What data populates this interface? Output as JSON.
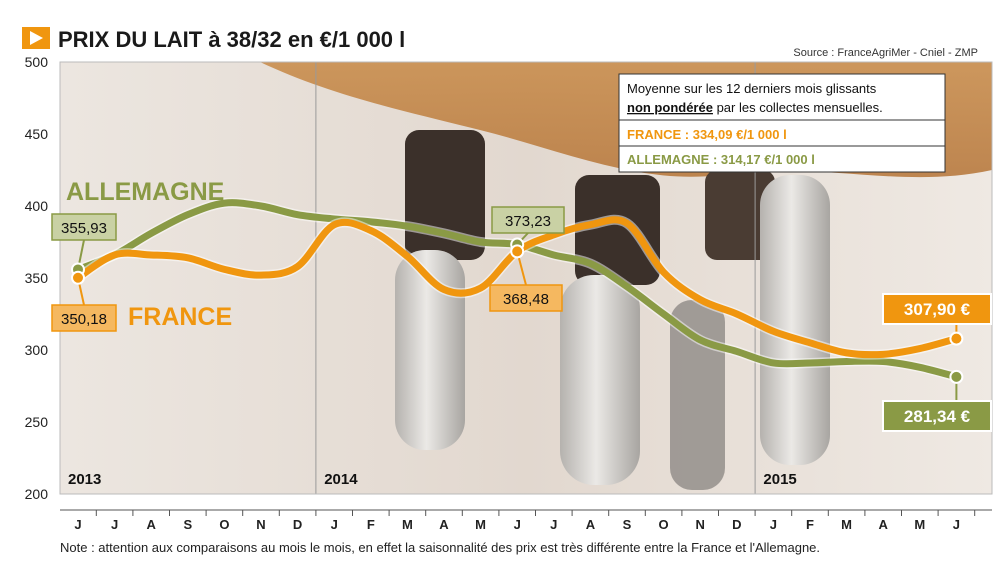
{
  "header": {
    "title": "PRIX DU LAIT à 38/32 en €/1 000 l",
    "source": "Source : FranceAgriMer - Cniel - ZMP"
  },
  "legend": {
    "line1": "Moyenne sur les 12 derniers mois glissants",
    "line2_bold": "non pondérée",
    "line2_rest": " par les collectes mensuelles.",
    "france": "FRANCE : 334,09 €/1 000 l",
    "allemagne": "ALLEMAGNE : 314,17 €/1 000 l"
  },
  "note": "Note : attention aux comparaisons au mois le mois, en effet la saisonnalité des prix est très différente entre la France et l'Allemagne.",
  "colors": {
    "france": "#f0960f",
    "allemagne": "#8a9a45",
    "title_icon": "#f0960f"
  },
  "chart_data": {
    "type": "line",
    "title": "PRIX DU LAIT à 38/32 en €/1 000 l",
    "xlabel": "",
    "ylabel": "",
    "ylim": [
      200,
      500
    ],
    "yticks": [
      "500",
      "450",
      "400",
      "350",
      "300",
      "250",
      "200"
    ],
    "yticks_values": [
      500,
      450,
      400,
      350,
      300,
      250,
      200
    ],
    "months": [
      "J",
      "J",
      "A",
      "S",
      "O",
      "N",
      "D",
      "J",
      "F",
      "M",
      "A",
      "M",
      "J",
      "J",
      "A",
      "S",
      "O",
      "N",
      "D",
      "J",
      "F",
      "M",
      "A",
      "M",
      "J"
    ],
    "years": [
      {
        "label": "2013",
        "index": 0
      },
      {
        "label": "2014",
        "index": 7
      },
      {
        "label": "2015",
        "index": 19
      }
    ],
    "grid": "vertical lines at year boundaries",
    "series": [
      {
        "name": "FRANCE",
        "color": "#f0960f",
        "values": [
          350.18,
          366,
          366,
          364,
          356,
          352,
          358,
          387,
          383,
          365,
          342,
          343,
          368.48,
          380,
          387,
          388,
          354,
          335,
          325,
          313,
          305,
          298,
          297,
          301,
          307.9
        ]
      },
      {
        "name": "ALLEMAGNE",
        "color": "#8a9a45",
        "values": [
          355.93,
          366,
          381,
          394,
          402,
          400,
          394,
          391,
          389,
          386,
          381,
          375,
          373.23,
          366,
          360,
          344,
          325,
          307,
          299,
          291,
          291,
          292,
          292,
          288,
          281.34
        ]
      }
    ],
    "data_labels": [
      {
        "series": "ALLEMAGNE",
        "index": 0,
        "text": "355,93"
      },
      {
        "series": "FRANCE",
        "index": 0,
        "text": "350,18"
      },
      {
        "series": "ALLEMAGNE",
        "index": 12,
        "text": "373,23"
      },
      {
        "series": "FRANCE",
        "index": 12,
        "text": "368,48"
      },
      {
        "series": "FRANCE",
        "index": 24,
        "text": "307,90 €"
      },
      {
        "series": "ALLEMAGNE",
        "index": 24,
        "text": "281,34 €"
      }
    ]
  }
}
